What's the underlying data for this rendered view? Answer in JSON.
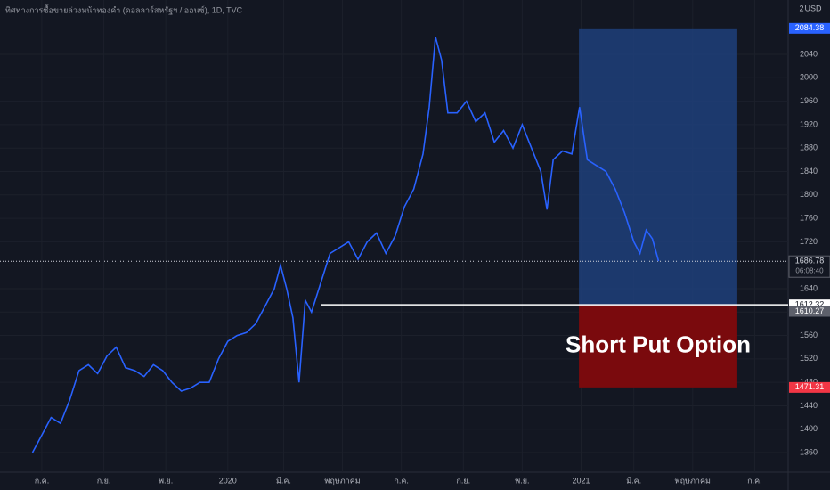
{
  "chart_data": {
    "type": "line",
    "title": "ทิศทางการซื้อขายล่วงหน้าทองคำ (ดอลลาร์สหรัฐฯ / ออนซ์), 1D, TVC",
    "currency": "USD",
    "scale_label": "2",
    "color": "#2962ff",
    "x": [
      -0.3,
      0,
      0.3,
      0.6,
      0.9,
      1.2,
      1.5,
      1.8,
      2.1,
      2.4,
      2.7,
      3.0,
      3.3,
      3.6,
      3.9,
      4.2,
      4.5,
      4.8,
      5.1,
      5.4,
      5.7,
      6.0,
      6.3,
      6.6,
      6.9,
      7.2,
      7.5,
      7.7,
      7.9,
      8.1,
      8.3,
      8.5,
      8.7,
      9.0,
      9.3,
      9.6,
      9.9,
      10.2,
      10.5,
      10.8,
      11.1,
      11.4,
      11.7,
      12.0,
      12.3,
      12.5,
      12.7,
      12.9,
      13.1,
      13.4,
      13.7,
      14.0,
      14.3,
      14.6,
      14.9,
      15.2,
      15.5,
      15.8,
      16.1,
      16.3,
      16.5,
      16.8,
      17.1,
      17.35,
      17.6,
      17.9,
      18.2,
      18.5,
      18.8,
      19.1,
      19.3,
      19.5,
      19.7,
      19.9
    ],
    "values": [
      1360,
      1390,
      1420,
      1410,
      1450,
      1500,
      1510,
      1495,
      1525,
      1540,
      1505,
      1500,
      1490,
      1510,
      1500,
      1480,
      1465,
      1470,
      1480,
      1480,
      1520,
      1550,
      1560,
      1565,
      1580,
      1610,
      1640,
      1680,
      1640,
      1590,
      1480,
      1620,
      1600,
      1650,
      1700,
      1710,
      1720,
      1690,
      1720,
      1735,
      1700,
      1730,
      1780,
      1810,
      1870,
      1950,
      2070,
      2030,
      1940,
      1940,
      1960,
      1925,
      1940,
      1890,
      1910,
      1880,
      1920,
      1880,
      1840,
      1775,
      1860,
      1875,
      1870,
      1950,
      1860,
      1850,
      1840,
      1810,
      1770,
      1720,
      1700,
      1740,
      1725,
      1687
    ],
    "xlim": [
      -1.35,
      24.08
    ],
    "xticks": [
      {
        "value": 0,
        "label": "ก.ค."
      },
      {
        "value": 2,
        "label": "ก.ย."
      },
      {
        "value": 4,
        "label": "พ.ย."
      },
      {
        "value": 6,
        "label": "2020"
      },
      {
        "value": 7.8,
        "label": "มี.ค."
      },
      {
        "value": 9.7,
        "label": "พฤษภาคม"
      },
      {
        "value": 11.6,
        "label": "ก.ค."
      },
      {
        "value": 13.6,
        "label": "ก.ย."
      },
      {
        "value": 15.5,
        "label": "พ.ย."
      },
      {
        "value": 17.4,
        "label": "2021"
      },
      {
        "value": 19.1,
        "label": "มี.ค."
      },
      {
        "value": 21.0,
        "label": "พฤษภาคม"
      },
      {
        "value": 23.0,
        "label": "ก.ค."
      }
    ],
    "ylim": [
      1326.6,
      2132.8
    ],
    "yticks": [
      1360,
      1400,
      1440,
      1480,
      1520,
      1560,
      1600,
      1640,
      1680,
      1720,
      1760,
      1800,
      1840,
      1880,
      1920,
      1960,
      2000,
      2040
    ],
    "grid": true,
    "current_price": {
      "value": 1686.78,
      "countdown": "06:08:40"
    },
    "position": {
      "label": "Short Put Option",
      "target": 2084.38,
      "entry": 1612.32,
      "stop": 1471.31,
      "x_start": 17.33,
      "x_end": 22.44,
      "entry_line_x_start": 9.0
    },
    "other_price": 1610.27
  }
}
